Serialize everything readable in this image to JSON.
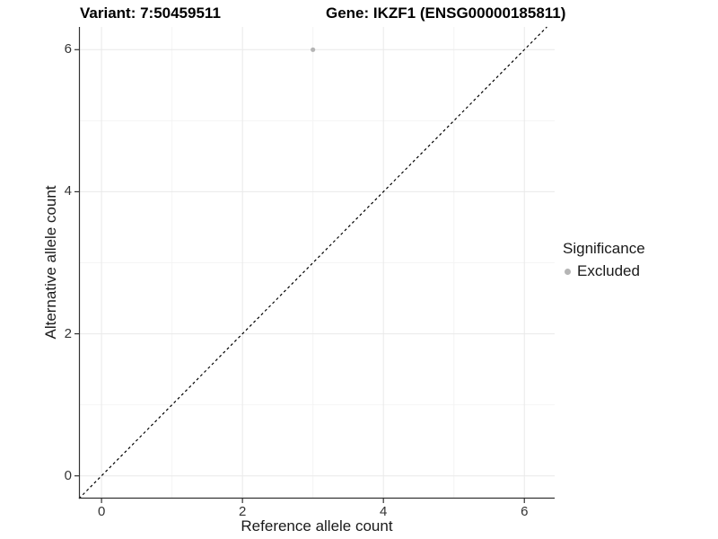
{
  "chart_data": {
    "type": "scatter",
    "title_left": "Variant: 7:50459511",
    "title_right": "Gene: IKZF1 (ENSG00000185811)",
    "xlabel": "Reference allele count",
    "ylabel": "Alternative allele count",
    "xlim": [
      -0.32,
      6.43
    ],
    "ylim": [
      -0.32,
      6.32
    ],
    "x_ticks": [
      0,
      2,
      4,
      6
    ],
    "y_ticks": [
      0,
      2,
      4,
      6
    ],
    "x_minor_ticks": [
      1,
      3,
      5
    ],
    "y_minor_ticks": [
      1,
      3,
      5
    ],
    "grid": true,
    "series": [
      {
        "name": "Excluded",
        "color": "#b5b5b5",
        "points": [
          {
            "x": 3,
            "y": 6
          }
        ]
      }
    ],
    "reference_line": {
      "type": "identity",
      "style": "dashed",
      "color": "#000000"
    },
    "legend": {
      "title": "Significance",
      "position": "right",
      "entries": [
        {
          "label": "Excluded",
          "color": "#b5b5b5"
        }
      ]
    }
  },
  "styles": {
    "grid_major_color": "#e9e9e9",
    "grid_minor_color": "#f4f4f4",
    "axis_line_color": "#333333",
    "tick_mark_color": "#333333"
  }
}
